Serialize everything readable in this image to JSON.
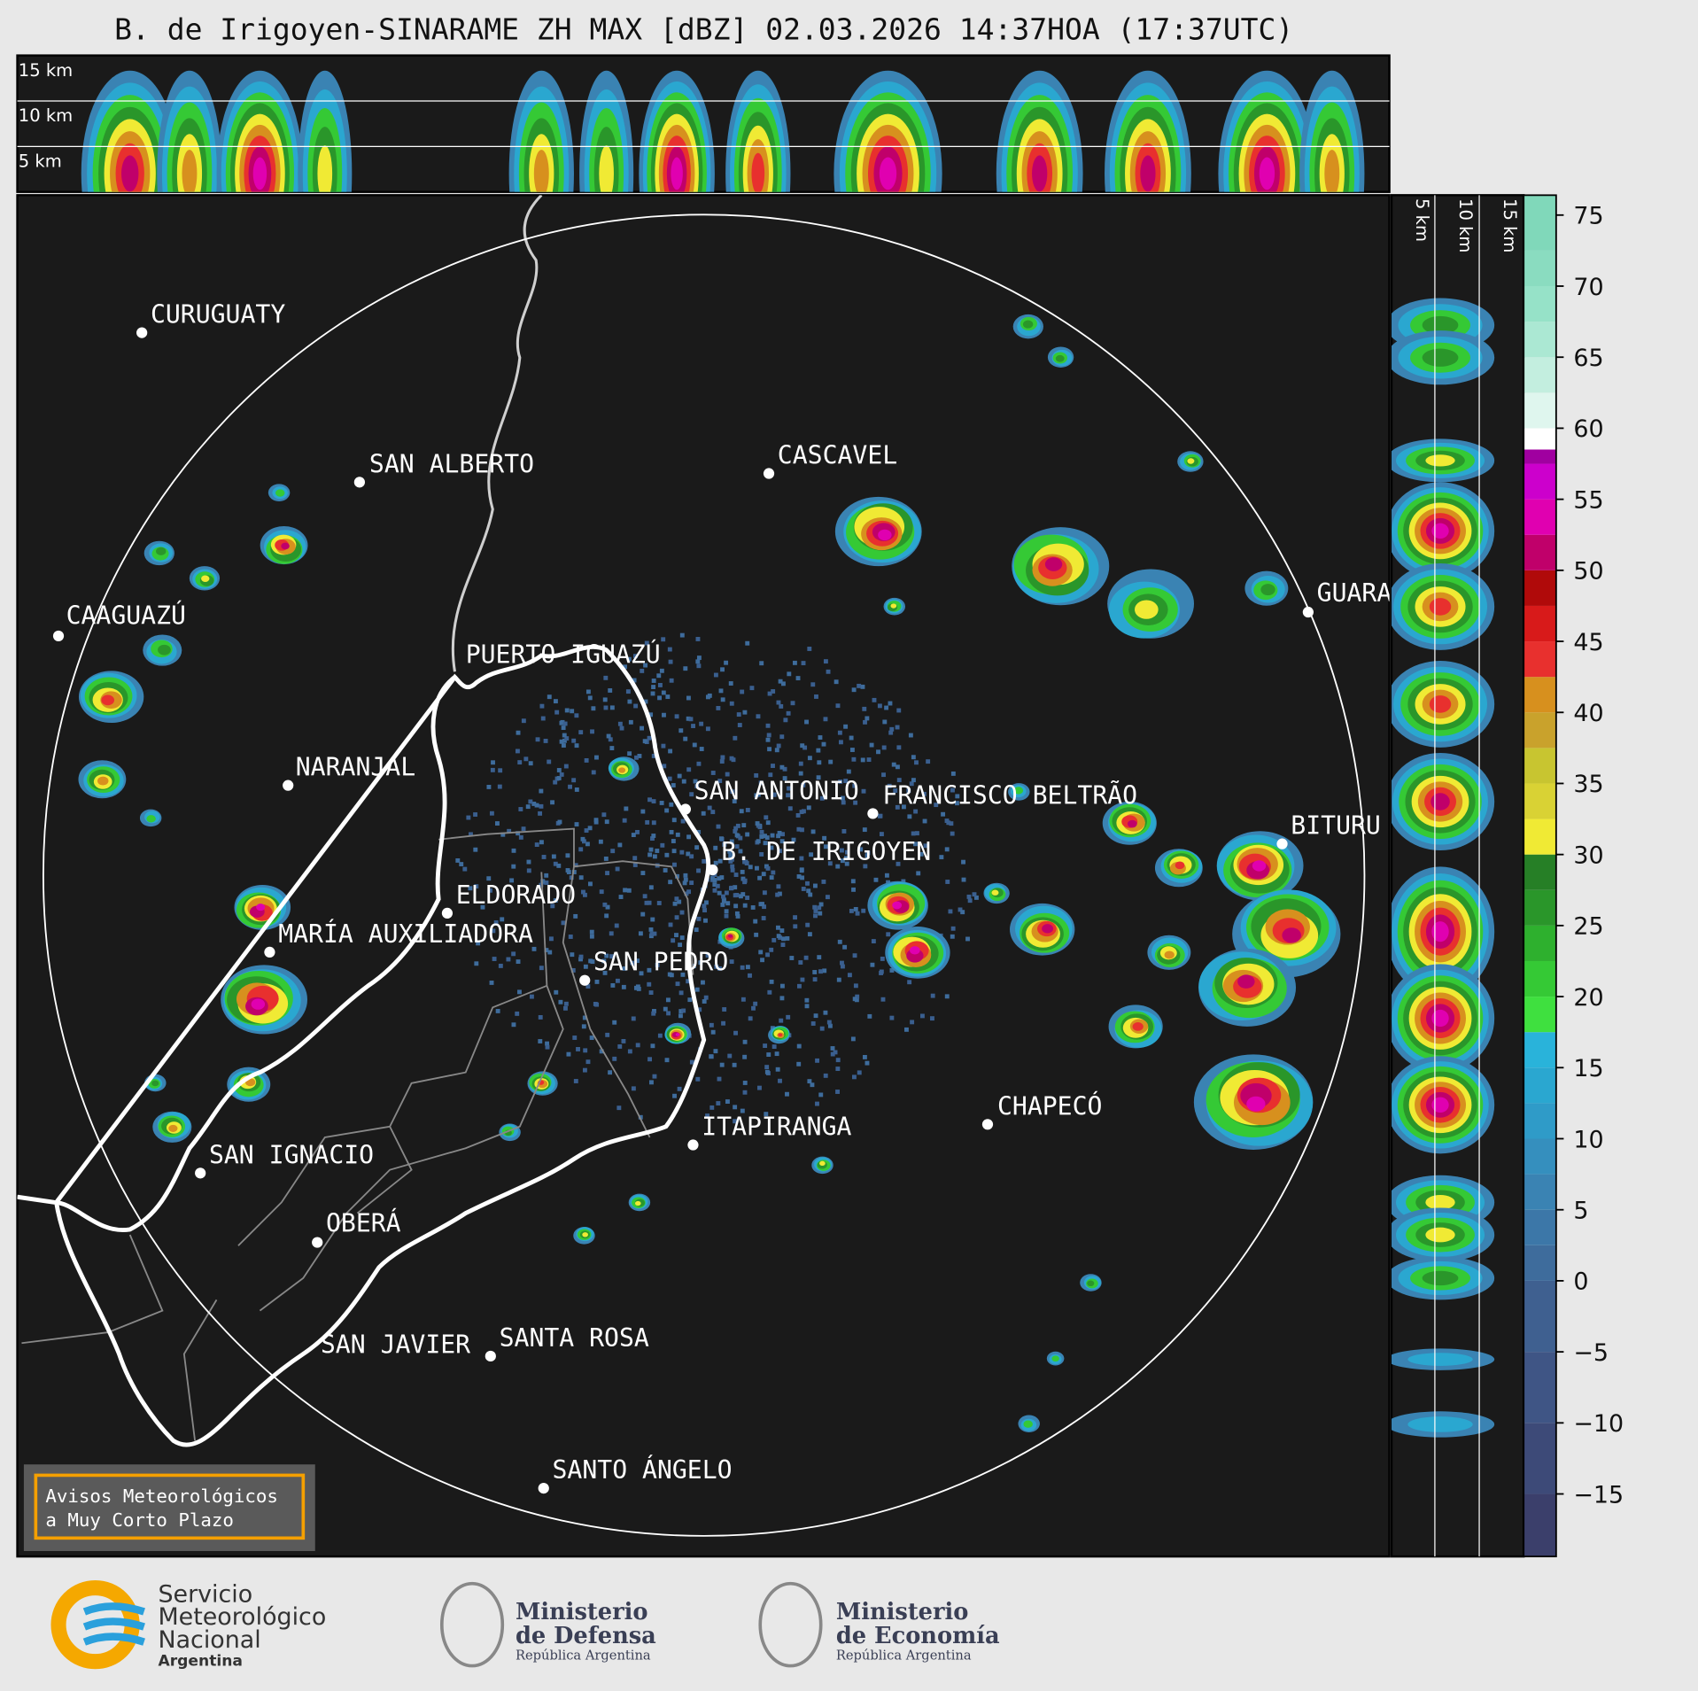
{
  "header": {
    "title": "B. de Irigoyen-SINARAME ZH MAX [dBZ] 02.03.2026 14:37HOA (17:37UTC)"
  },
  "top_panel": {
    "height_labels": [
      "15 km",
      "10 km",
      "5 km"
    ]
  },
  "side_panel": {
    "height_labels": [
      "5 km",
      "10 km",
      "15 km"
    ]
  },
  "map": {
    "cities": [
      "CURUGUATY",
      "SAN ALBERTO",
      "CASCAVEL",
      "CAAGUAZÚ",
      "GUARA",
      "PUERTO IGUAZÚ",
      "NARANJAL",
      "SAN ANTONIO",
      "FRANCISCO BELTRÃO",
      "BITURU",
      "B. DE IRIGOYEN",
      "ELDORADO",
      "MARÍA AUXILIADORA",
      "SAN PEDRO",
      "CHAPECÓ",
      "ITAPIRANGA",
      "SAN IGNACIO",
      "OBERÁ",
      "SAN JAVIER",
      "SANTA ROSA",
      "SANTO ÁNGELO"
    ]
  },
  "colorbar": {
    "ylim": [
      -19.4,
      76.4
    ],
    "yticks": [
      {
        "value": -15,
        "label": "−15"
      },
      {
        "value": -10,
        "label": "−10"
      },
      {
        "value": -5,
        "label": "−5"
      },
      0,
      5,
      10,
      15,
      20,
      25,
      30,
      35,
      40,
      45,
      50,
      55,
      60,
      65,
      70,
      75
    ],
    "segments": [
      {
        "from": -20,
        "color": "#3b3f6b"
      },
      {
        "from": -15,
        "color": "#3d4a78"
      },
      {
        "from": -10,
        "color": "#3f5585"
      },
      {
        "from": -5,
        "color": "#3f6090"
      },
      {
        "from": 0,
        "color": "#3e6c9c"
      },
      {
        "from": 2.5,
        "color": "#3c77a8"
      },
      {
        "from": 5,
        "color": "#3a83b3"
      },
      {
        "from": 7.5,
        "color": "#358fbe"
      },
      {
        "from": 10,
        "color": "#2f9bc8"
      },
      {
        "from": 12.5,
        "color": "#2aa7d0"
      },
      {
        "from": 15,
        "color": "#29b3da"
      },
      {
        "from": 17.5,
        "color": "#3fe03f"
      },
      {
        "from": 20,
        "color": "#35c935"
      },
      {
        "from": 22.5,
        "color": "#2eb02e"
      },
      {
        "from": 25,
        "color": "#2a962a"
      },
      {
        "from": 27.5,
        "color": "#267f26"
      },
      {
        "from": 30,
        "color": "#f0ea34"
      },
      {
        "from": 32.5,
        "color": "#d9d234"
      },
      {
        "from": 35,
        "color": "#c8c530"
      },
      {
        "from": 37.5,
        "color": "#c9a22c"
      },
      {
        "from": 40,
        "color": "#d7901e"
      },
      {
        "from": 42.5,
        "color": "#e8302e"
      },
      {
        "from": 45,
        "color": "#d81a1a"
      },
      {
        "from": 47.5,
        "color": "#b00a0a"
      },
      {
        "from": 50,
        "color": "#c0006a"
      },
      {
        "from": 52.5,
        "color": "#e000b0"
      },
      {
        "from": 55,
        "color": "#cc00cc"
      },
      {
        "from": 57.5,
        "color": "#a000a0"
      },
      {
        "from": 58.5,
        "color": "#ffffff"
      },
      {
        "from": 60,
        "color": "#dff6ee"
      },
      {
        "from": 62.5,
        "color": "#c3eedf"
      },
      {
        "from": 65,
        "color": "#abe8d3"
      },
      {
        "from": 67.5,
        "color": "#96e2c8"
      },
      {
        "from": 70,
        "color": "#8adcc0"
      },
      {
        "from": 72.5,
        "color": "#80d8ba"
      }
    ]
  },
  "notice": {
    "lines": [
      "Avisos Meteorológicos",
      "a Muy Corto Plazo"
    ]
  },
  "footer": {
    "smn": [
      "Servicio",
      "Meteorológico",
      "Nacional",
      "Argentina"
    ],
    "defensa": [
      "Ministerio",
      "de Defensa",
      "República Argentina"
    ],
    "economia": [
      "Ministerio",
      "de Economía",
      "República Argentina"
    ]
  }
}
